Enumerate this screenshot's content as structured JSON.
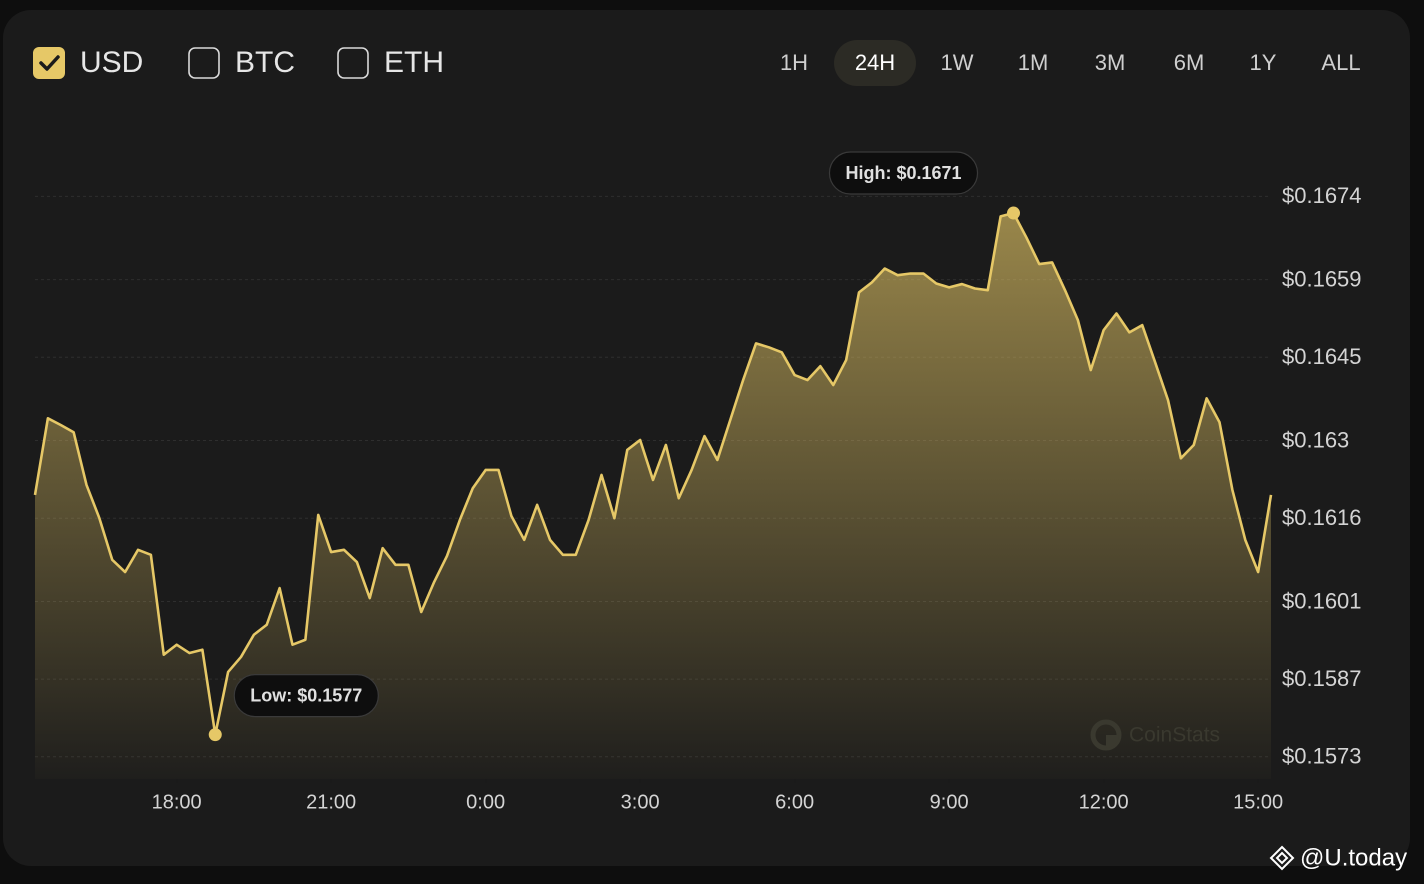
{
  "controls": {
    "currencies": [
      {
        "label": "USD",
        "checked": true
      },
      {
        "label": "BTC",
        "checked": false
      },
      {
        "label": "ETH",
        "checked": false
      }
    ],
    "ranges": [
      {
        "label": "1H",
        "selected": false
      },
      {
        "label": "24H",
        "selected": true
      },
      {
        "label": "1W",
        "selected": false
      },
      {
        "label": "1M",
        "selected": false
      },
      {
        "label": "3M",
        "selected": false
      },
      {
        "label": "6M",
        "selected": false
      },
      {
        "label": "1Y",
        "selected": false
      },
      {
        "label": "ALL",
        "selected": false
      }
    ]
  },
  "chart_data": {
    "type": "line",
    "fill": true,
    "color": "#e6c867",
    "grid": true,
    "annotations": {
      "high": "High: $0.1671",
      "low": "Low: $0.1577"
    },
    "watermark": "CoinStats",
    "xlim": [
      15.25,
      39.25
    ],
    "xticks": [
      {
        "value": 18,
        "label": "18:00"
      },
      {
        "value": 21,
        "label": "21:00"
      },
      {
        "value": 24,
        "label": "0:00"
      },
      {
        "value": 27,
        "label": "3:00"
      },
      {
        "value": 30,
        "label": "6:00"
      },
      {
        "value": 33,
        "label": "9:00"
      },
      {
        "value": 36,
        "label": "12:00"
      },
      {
        "value": 39,
        "label": "15:00"
      }
    ],
    "ylim": [
      0.1569,
      0.1682
    ],
    "yticks": [
      {
        "value": 0.1674,
        "label": "$0.1674"
      },
      {
        "value": 0.1659,
        "label": "$0.1659"
      },
      {
        "value": 0.1645,
        "label": "$0.1645"
      },
      {
        "value": 0.163,
        "label": "$0.163"
      },
      {
        "value": 0.1616,
        "label": "$0.1616"
      },
      {
        "value": 0.1601,
        "label": "$0.1601"
      },
      {
        "value": 0.1587,
        "label": "$0.1587"
      },
      {
        "value": 0.1573,
        "label": "$0.1573"
      }
    ],
    "x": [
      15.25,
      15.5,
      15.75,
      16,
      16.25,
      16.5,
      16.75,
      17,
      17.25,
      17.5,
      17.75,
      18,
      18.25,
      18.5,
      18.75,
      19,
      19.25,
      19.5,
      19.75,
      20,
      20.25,
      20.5,
      20.75,
      21,
      21.25,
      21.5,
      21.75,
      22,
      22.25,
      22.5,
      22.75,
      23,
      23.25,
      23.5,
      23.75,
      24,
      24.25,
      24.5,
      24.75,
      25,
      25.25,
      25.5,
      25.75,
      26,
      26.25,
      26.5,
      26.75,
      27,
      27.25,
      27.5,
      27.75,
      28,
      28.25,
      28.5,
      28.75,
      29,
      29.25,
      29.5,
      29.75,
      30,
      30.25,
      30.5,
      30.75,
      31,
      31.25,
      31.5,
      31.75,
      32,
      32.25,
      32.5,
      32.75,
      33,
      33.25,
      33.5,
      33.75,
      34,
      34.25,
      34.5,
      34.75,
      35,
      35.25,
      35.5,
      35.75,
      36,
      36.25,
      36.5,
      36.75,
      37,
      37.25,
      37.5,
      37.75,
      38,
      38.25,
      38.5,
      38.75,
      39,
      39.25
    ],
    "values": [
      0.16202,
      0.1634,
      0.16328,
      0.16315,
      0.1622,
      0.1616,
      0.16085,
      0.16063,
      0.16103,
      0.16094,
      0.15914,
      0.15932,
      0.15917,
      0.15923,
      0.1577,
      0.15883,
      0.1591,
      0.1595,
      0.15968,
      0.16034,
      0.15932,
      0.15941,
      0.16166,
      0.16099,
      0.16103,
      0.16081,
      0.16016,
      0.16106,
      0.16076,
      0.16076,
      0.15991,
      0.16045,
      0.16092,
      0.16157,
      0.16214,
      0.16247,
      0.16247,
      0.16164,
      0.16121,
      0.16184,
      0.16121,
      0.16094,
      0.16094,
      0.16157,
      0.16238,
      0.1616,
      0.16283,
      0.16301,
      0.16229,
      0.16292,
      0.16196,
      0.16247,
      0.16308,
      0.16265,
      0.16337,
      0.16409,
      0.16475,
      0.16468,
      0.16459,
      0.16418,
      0.16409,
      0.16434,
      0.164,
      0.16445,
      0.16567,
      0.16585,
      0.1661,
      0.16598,
      0.16601,
      0.16601,
      0.16583,
      0.16576,
      0.16582,
      0.16574,
      0.16571,
      0.16704,
      0.1671,
      0.16666,
      0.16618,
      0.16621,
      0.16571,
      0.16517,
      0.16427,
      0.16499,
      0.16529,
      0.16495,
      0.16508,
      0.16441,
      0.16373,
      0.16268,
      0.16292,
      0.16376,
      0.16333,
      0.16211,
      0.16121,
      0.16063,
      0.16202
    ]
  },
  "source": "@U.today"
}
